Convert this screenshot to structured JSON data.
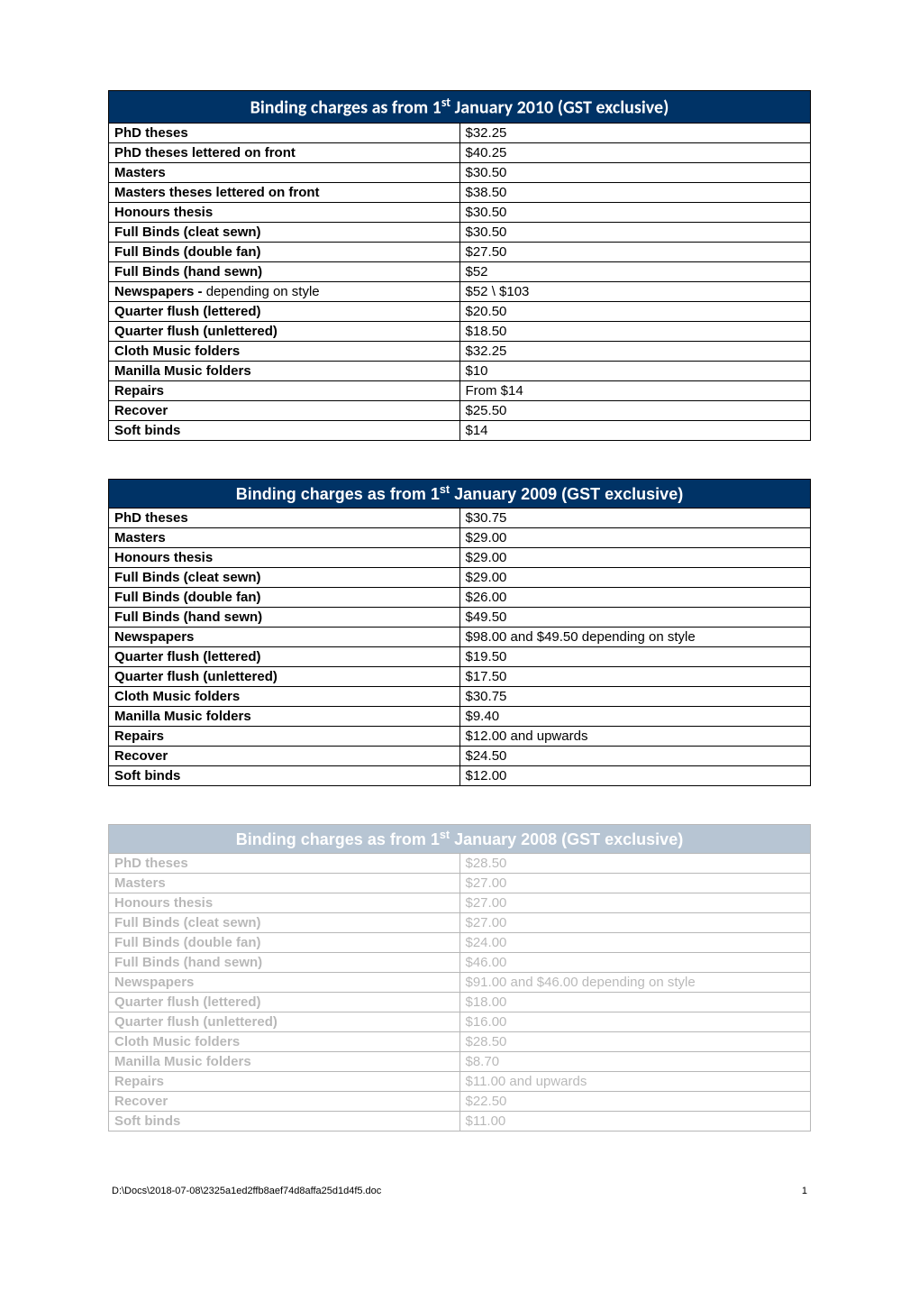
{
  "tables": [
    {
      "title_pre": "Binding charges as from 1",
      "title_sup": "st",
      "title_post": " January 2010 (GST exclusive)",
      "header_font": "calibri",
      "faded": false,
      "rows": [
        {
          "label": "PhD theses",
          "price": "$32.25"
        },
        {
          "label": "PhD theses lettered on front",
          "price": "$40.25"
        },
        {
          "label": "Masters",
          "price": "$30.50"
        },
        {
          "label": "Masters theses lettered on front",
          "price": "$38.50"
        },
        {
          "label": "Honours thesis",
          "price": "$30.50"
        },
        {
          "label": "Full Binds (cleat sewn)",
          "price": "$30.50"
        },
        {
          "label": "Full Binds (double fan)",
          "price": "$27.50"
        },
        {
          "label": "Full Binds (hand sewn)",
          "price": "$52"
        },
        {
          "label": "Newspapers - ",
          "label_extra": "depending on style",
          "price": "$52 \\ $103"
        },
        {
          "label": "Quarter flush (lettered)",
          "price": "$20.50"
        },
        {
          "label": "Quarter flush (unlettered)",
          "price": "$18.50"
        },
        {
          "label": "Cloth Music folders",
          "price": "$32.25"
        },
        {
          "label": "Manilla Music folders",
          "price": "$10"
        },
        {
          "label": "Repairs",
          "price": "From $14"
        },
        {
          "label": "Recover",
          "price": "$25.50"
        },
        {
          "label": "Soft binds",
          "price": "$14"
        }
      ]
    },
    {
      "title_pre": "Binding charges as from 1",
      "title_sup": "st",
      "title_post": " January 2009 (GST exclusive)",
      "header_font": "arial",
      "faded": false,
      "rows": [
        {
          "label": "PhD theses",
          "price": "$30.75"
        },
        {
          "label": "Masters",
          "price": "$29.00"
        },
        {
          "label": "Honours thesis",
          "price": "$29.00"
        },
        {
          "label": "Full Binds (cleat sewn)",
          "price": "$29.00"
        },
        {
          "label": "Full Binds (double fan)",
          "price": "$26.00"
        },
        {
          "label": "Full Binds (hand sewn)",
          "price": "$49.50"
        },
        {
          "label": "Newspapers",
          "price": "$98.00 and $49.50 depending on style"
        },
        {
          "label": "Quarter flush (lettered)",
          "price": "$19.50"
        },
        {
          "label": "Quarter flush (unlettered)",
          "price": "$17.50"
        },
        {
          "label": "Cloth Music folders",
          "price": "$30.75"
        },
        {
          "label": "Manilla Music folders",
          "price": "$9.40"
        },
        {
          "label": "Repairs",
          "price": "$12.00 and upwards"
        },
        {
          "label": "Recover",
          "price": "$24.50"
        },
        {
          "label": "Soft binds",
          "price": "$12.00"
        }
      ]
    },
    {
      "title_pre": "Binding charges as from 1",
      "title_sup": "st",
      "title_post": " January 2008 (GST exclusive)",
      "header_font": "arial",
      "faded": true,
      "rows": [
        {
          "label": "PhD theses",
          "price": "$28.50"
        },
        {
          "label": "Masters",
          "price": "$27.00"
        },
        {
          "label": "Honours thesis",
          "price": "$27.00"
        },
        {
          "label": "Full Binds (cleat sewn)",
          "price": "$27.00"
        },
        {
          "label": "Full Binds (double fan)",
          "price": "$24.00"
        },
        {
          "label": "Full Binds (hand sewn)",
          "price": "$46.00"
        },
        {
          "label": "Newspapers",
          "price": "$91.00 and $46.00 depending on style"
        },
        {
          "label": "Quarter flush (lettered)",
          "price": "$18.00"
        },
        {
          "label": "Quarter flush (unlettered)",
          "price": "$16.00"
        },
        {
          "label": "Cloth Music folders",
          "price": "$28.50"
        },
        {
          "label": "Manilla Music folders",
          "price": "$8.70"
        },
        {
          "label": "Repairs",
          "price": "$11.00 and upwards"
        },
        {
          "label": "Recover",
          "price": "$22.50"
        },
        {
          "label": "Soft binds",
          "price": "$11.00"
        }
      ]
    }
  ],
  "footer": {
    "path": "D:\\Docs\\2018-07-08\\2325a1ed2ffb8aef74d8affa25d1d4f5.doc",
    "page": "1"
  },
  "style": {
    "header_bg": "#003366",
    "header_fg": "#ffffff",
    "border_color": "#000000",
    "col1_width_pct": 50,
    "col2_width_pct": 50
  }
}
